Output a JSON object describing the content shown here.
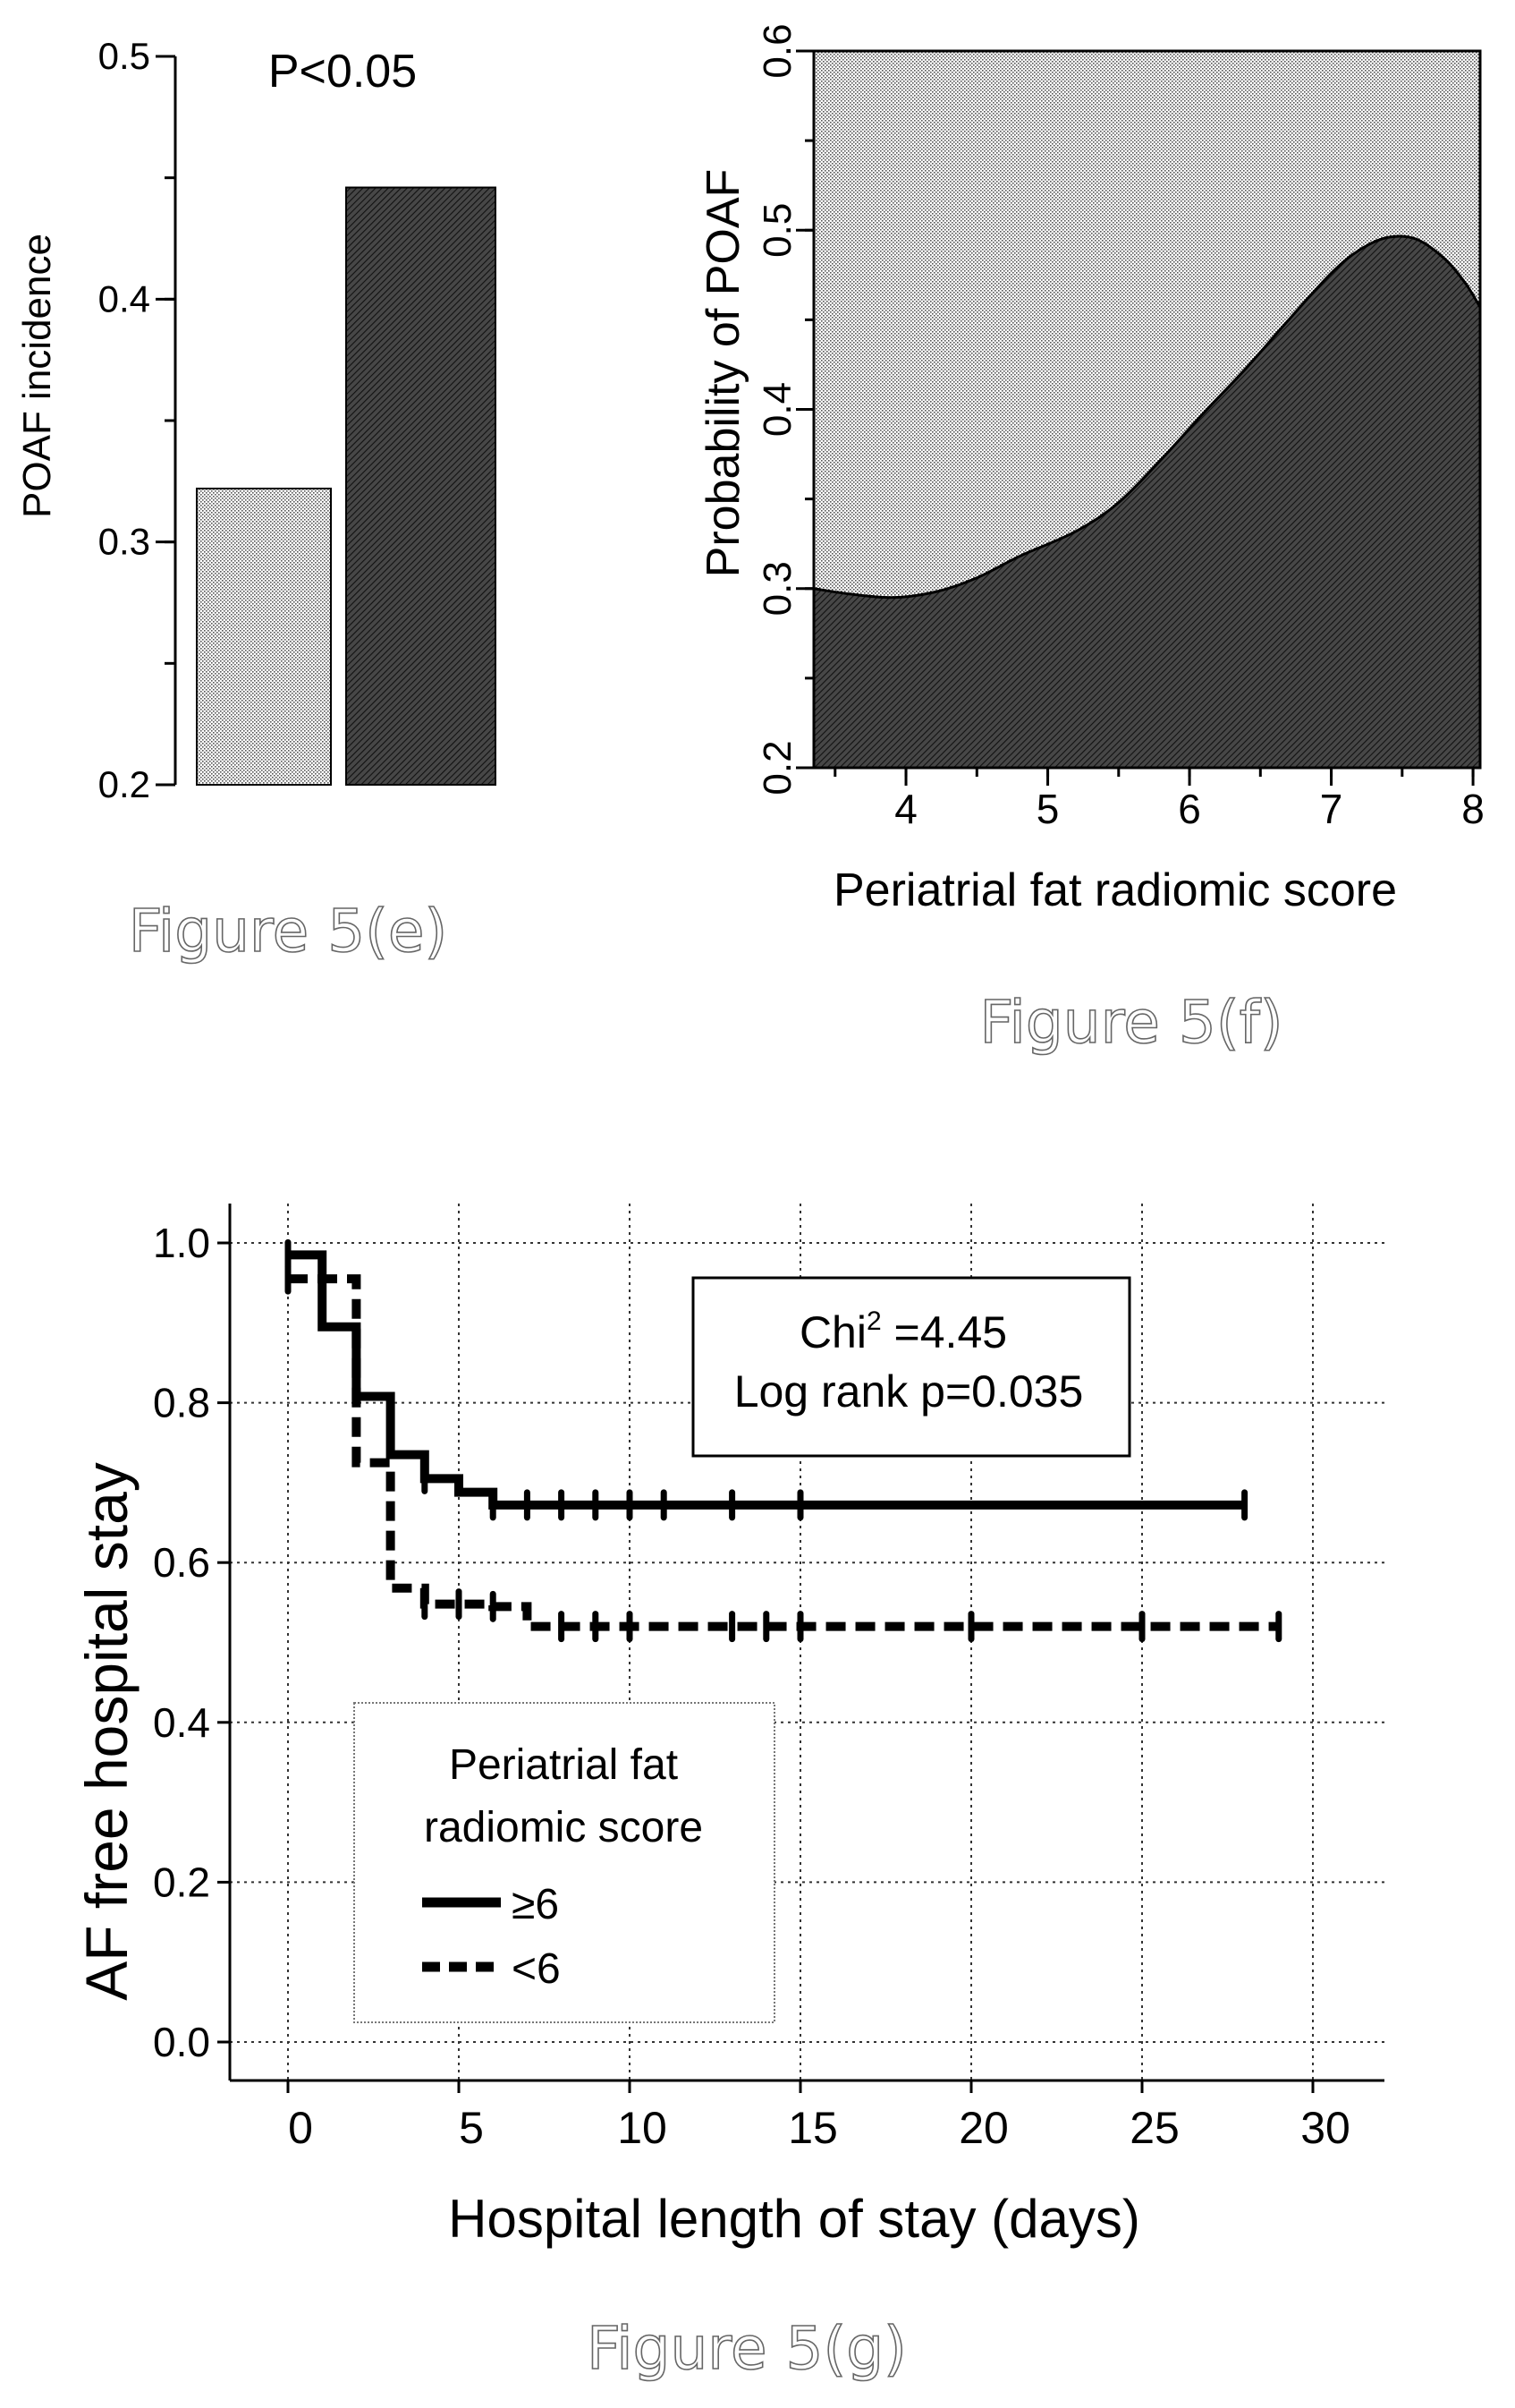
{
  "chart_data": [
    {
      "id": "e",
      "type": "bar",
      "categories": [
        "",
        ""
      ],
      "values": [
        0.322,
        0.446
      ],
      "ylabel": "POAF incidence",
      "ylim": [
        0.2,
        0.5
      ],
      "yticks": [
        "0.2",
        "0.3",
        "0.4",
        "0.5"
      ],
      "annotation": "P<0.05",
      "caption": "Figure 5(e)",
      "bar_fills": [
        "light stipple",
        "dark hatch"
      ]
    },
    {
      "id": "f",
      "type": "area",
      "xlabel": "Periatrial fat radiomic score",
      "ylabel": "Probability of POAF",
      "xlim": [
        3.35,
        8.05
      ],
      "ylim": [
        0.2,
        0.6
      ],
      "xticks": [
        "4",
        "5",
        "6",
        "7",
        "8"
      ],
      "yticks": [
        "0.2",
        "0.3",
        "0.4",
        "0.5",
        "0.6"
      ],
      "x": [
        3.35,
        3.6,
        3.9,
        4.2,
        4.5,
        4.8,
        5.2,
        5.5,
        5.8,
        6.1,
        6.4,
        6.7,
        7.0,
        7.2,
        7.4,
        7.6,
        7.8,
        7.95,
        8.05
      ],
      "y": [
        0.3,
        0.297,
        0.295,
        0.298,
        0.306,
        0.318,
        0.332,
        0.348,
        0.372,
        0.398,
        0.423,
        0.45,
        0.476,
        0.489,
        0.496,
        0.495,
        0.484,
        0.47,
        0.457
      ],
      "caption": "Figure 5(f)"
    },
    {
      "id": "g",
      "type": "line",
      "xlabel": "Hospital length of stay (days)",
      "ylabel": "AF free hospital stay",
      "xlim": [
        -1.7,
        32
      ],
      "ylim": [
        -0.05,
        1.05
      ],
      "xticks": [
        "0",
        "5",
        "10",
        "15",
        "20",
        "25",
        "30"
      ],
      "yticks": [
        "0.0",
        "0.2",
        "0.4",
        "0.6",
        "0.8",
        "1.0"
      ],
      "grid": true,
      "legend_position": "lower-left",
      "legend_title": "Periatrial fat radiomic score",
      "legend_title_lines": [
        "Periatrial fat",
        "radiomic score"
      ],
      "series": [
        {
          "name": "≥6",
          "style": "solid",
          "x": [
            0,
            1,
            2,
            3,
            4,
            5,
            6,
            28
          ],
          "y": [
            0.985,
            0.895,
            0.808,
            0.735,
            0.705,
            0.688,
            0.672,
            0.672
          ],
          "censor_x": [
            0,
            4,
            6,
            7,
            8,
            9,
            10,
            11,
            13,
            15,
            28
          ]
        },
        {
          "name": "<6",
          "style": "dashed",
          "x": [
            0,
            2,
            3,
            4,
            6,
            7,
            29
          ],
          "y": [
            0.955,
            0.725,
            0.568,
            0.548,
            0.545,
            0.52,
            0.52
          ],
          "censor_x": [
            0,
            4,
            5,
            6,
            8,
            9,
            10,
            13,
            14,
            15,
            20,
            25,
            29
          ]
        }
      ],
      "annotation_lines": [
        "Chi² =4.45",
        "Log rank p=0.035"
      ],
      "annotation": {
        "chi_prefix": "Chi",
        "chi_sup": "2",
        "chi_value": " =4.45",
        "logrank": "Log rank p=0.035"
      },
      "caption": "Figure 5(g)"
    }
  ]
}
